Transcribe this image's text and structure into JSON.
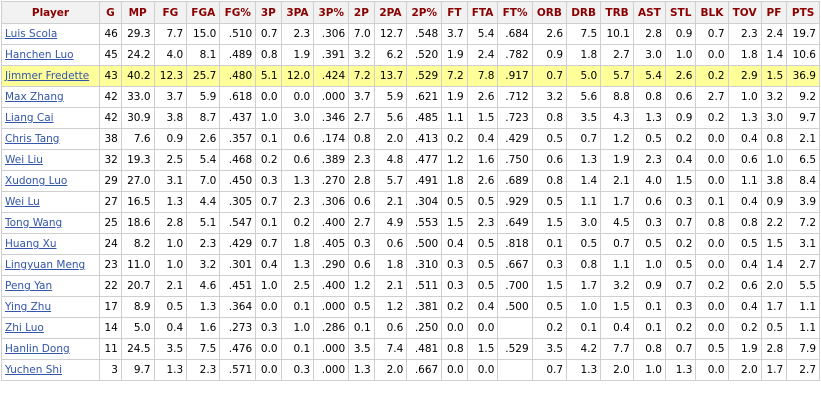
{
  "columns": [
    "Player",
    "G",
    "MP",
    "FG",
    "FGA",
    "FG%",
    "3P",
    "3PA",
    "3P%",
    "2P",
    "2PA",
    "2P%",
    "FT",
    "FTA",
    "FT%",
    "ORB",
    "DRB",
    "TRB",
    "AST",
    "STL",
    "BLK",
    "TOV",
    "PF",
    "PTS"
  ],
  "highlight_color": "#ffff99",
  "header_color": "#8b0000",
  "link_color": "#3355aa",
  "rows": [
    {
      "highlight": false,
      "cells": [
        "Luis Scola",
        "46",
        "29.3",
        "7.7",
        "15.0",
        ".510",
        "0.7",
        "2.3",
        ".306",
        "7.0",
        "12.7",
        ".548",
        "3.7",
        "5.4",
        ".684",
        "2.6",
        "7.5",
        "10.1",
        "2.8",
        "0.9",
        "0.7",
        "2.3",
        "2.4",
        "19.7"
      ]
    },
    {
      "highlight": false,
      "cells": [
        "Hanchen Luo",
        "45",
        "24.2",
        "4.0",
        "8.1",
        ".489",
        "0.8",
        "1.9",
        ".391",
        "3.2",
        "6.2",
        ".520",
        "1.9",
        "2.4",
        ".782",
        "0.9",
        "1.8",
        "2.7",
        "3.0",
        "1.0",
        "0.0",
        "1.8",
        "1.4",
        "10.6"
      ]
    },
    {
      "highlight": true,
      "cells": [
        "Jimmer Fredette",
        "43",
        "40.2",
        "12.3",
        "25.7",
        ".480",
        "5.1",
        "12.0",
        ".424",
        "7.2",
        "13.7",
        ".529",
        "7.2",
        "7.8",
        ".917",
        "0.7",
        "5.0",
        "5.7",
        "5.4",
        "2.6",
        "0.2",
        "2.9",
        "1.5",
        "36.9"
      ]
    },
    {
      "highlight": false,
      "cells": [
        "Max Zhang",
        "42",
        "33.0",
        "3.7",
        "5.9",
        ".618",
        "0.0",
        "0.0",
        ".000",
        "3.7",
        "5.9",
        ".621",
        "1.9",
        "2.6",
        ".712",
        "3.2",
        "5.6",
        "8.8",
        "0.8",
        "0.6",
        "2.7",
        "1.0",
        "3.2",
        "9.2"
      ]
    },
    {
      "highlight": false,
      "cells": [
        "Liang Cai",
        "42",
        "30.9",
        "3.8",
        "8.7",
        ".437",
        "1.0",
        "3.0",
        ".346",
        "2.7",
        "5.6",
        ".485",
        "1.1",
        "1.5",
        ".723",
        "0.8",
        "3.5",
        "4.3",
        "1.3",
        "0.9",
        "0.2",
        "1.3",
        "3.0",
        "9.7"
      ]
    },
    {
      "highlight": false,
      "cells": [
        "Chris Tang",
        "38",
        "7.6",
        "0.9",
        "2.6",
        ".357",
        "0.1",
        "0.6",
        ".174",
        "0.8",
        "2.0",
        ".413",
        "0.2",
        "0.4",
        ".429",
        "0.5",
        "0.7",
        "1.2",
        "0.5",
        "0.2",
        "0.0",
        "0.4",
        "0.8",
        "2.1"
      ]
    },
    {
      "highlight": false,
      "cells": [
        "Wei Liu",
        "32",
        "19.3",
        "2.5",
        "5.4",
        ".468",
        "0.2",
        "0.6",
        ".389",
        "2.3",
        "4.8",
        ".477",
        "1.2",
        "1.6",
        ".750",
        "0.6",
        "1.3",
        "1.9",
        "2.3",
        "0.4",
        "0.0",
        "0.6",
        "1.0",
        "6.5"
      ]
    },
    {
      "highlight": false,
      "cells": [
        "Xudong Luo",
        "29",
        "27.0",
        "3.1",
        "7.0",
        ".450",
        "0.3",
        "1.3",
        ".270",
        "2.8",
        "5.7",
        ".491",
        "1.8",
        "2.6",
        ".689",
        "0.8",
        "1.4",
        "2.1",
        "4.0",
        "1.5",
        "0.0",
        "1.1",
        "3.8",
        "8.4"
      ]
    },
    {
      "highlight": false,
      "cells": [
        "Wei Lu",
        "27",
        "16.5",
        "1.3",
        "4.4",
        ".305",
        "0.7",
        "2.3",
        ".306",
        "0.6",
        "2.1",
        ".304",
        "0.5",
        "0.5",
        ".929",
        "0.5",
        "1.1",
        "1.7",
        "0.6",
        "0.3",
        "0.1",
        "0.4",
        "0.9",
        "3.9"
      ]
    },
    {
      "highlight": false,
      "cells": [
        "Tong Wang",
        "25",
        "18.6",
        "2.8",
        "5.1",
        ".547",
        "0.1",
        "0.2",
        ".400",
        "2.7",
        "4.9",
        ".553",
        "1.5",
        "2.3",
        ".649",
        "1.5",
        "3.0",
        "4.5",
        "0.3",
        "0.7",
        "0.8",
        "0.8",
        "2.2",
        "7.2"
      ]
    },
    {
      "highlight": false,
      "cells": [
        "Huang Xu",
        "24",
        "8.2",
        "1.0",
        "2.3",
        ".429",
        "0.7",
        "1.8",
        ".405",
        "0.3",
        "0.6",
        ".500",
        "0.4",
        "0.5",
        ".818",
        "0.1",
        "0.5",
        "0.7",
        "0.5",
        "0.2",
        "0.0",
        "0.5",
        "1.5",
        "3.1"
      ]
    },
    {
      "highlight": false,
      "cells": [
        "Lingyuan Meng",
        "23",
        "11.0",
        "1.0",
        "3.2",
        ".301",
        "0.4",
        "1.3",
        ".290",
        "0.6",
        "1.8",
        ".310",
        "0.3",
        "0.5",
        ".667",
        "0.3",
        "0.8",
        "1.1",
        "1.0",
        "0.5",
        "0.0",
        "0.4",
        "1.4",
        "2.7"
      ]
    },
    {
      "highlight": false,
      "cells": [
        "Peng Yan",
        "22",
        "20.7",
        "2.1",
        "4.6",
        ".451",
        "1.0",
        "2.5",
        ".400",
        "1.2",
        "2.1",
        ".511",
        "0.3",
        "0.5",
        ".700",
        "1.5",
        "1.7",
        "3.2",
        "0.9",
        "0.7",
        "0.2",
        "0.6",
        "2.0",
        "5.5"
      ]
    },
    {
      "highlight": false,
      "cells": [
        "Ying Zhu",
        "17",
        "8.9",
        "0.5",
        "1.3",
        ".364",
        "0.0",
        "0.1",
        ".000",
        "0.5",
        "1.2",
        ".381",
        "0.2",
        "0.4",
        ".500",
        "0.5",
        "1.0",
        "1.5",
        "0.1",
        "0.3",
        "0.0",
        "0.4",
        "1.7",
        "1.1"
      ]
    },
    {
      "highlight": false,
      "cells": [
        "Zhi Luo",
        "14",
        "5.0",
        "0.4",
        "1.6",
        ".273",
        "0.3",
        "1.0",
        ".286",
        "0.1",
        "0.6",
        ".250",
        "0.0",
        "0.0",
        "",
        "0.2",
        "0.1",
        "0.4",
        "0.1",
        "0.2",
        "0.0",
        "0.2",
        "0.5",
        "1.1"
      ]
    },
    {
      "highlight": false,
      "cells": [
        "Hanlin Dong",
        "11",
        "24.5",
        "3.5",
        "7.5",
        ".476",
        "0.0",
        "0.1",
        ".000",
        "3.5",
        "7.4",
        ".481",
        "0.8",
        "1.5",
        ".529",
        "3.5",
        "4.2",
        "7.7",
        "0.8",
        "0.7",
        "0.5",
        "1.9",
        "2.8",
        "7.9"
      ]
    },
    {
      "highlight": false,
      "cells": [
        "Yuchen Shi",
        "3",
        "9.7",
        "1.3",
        "2.3",
        ".571",
        "0.0",
        "0.3",
        ".000",
        "1.3",
        "2.0",
        ".667",
        "0.0",
        "0.0",
        "",
        "0.7",
        "1.3",
        "2.0",
        "1.0",
        "1.3",
        "0.0",
        "2.0",
        "1.7",
        "2.7"
      ]
    }
  ]
}
